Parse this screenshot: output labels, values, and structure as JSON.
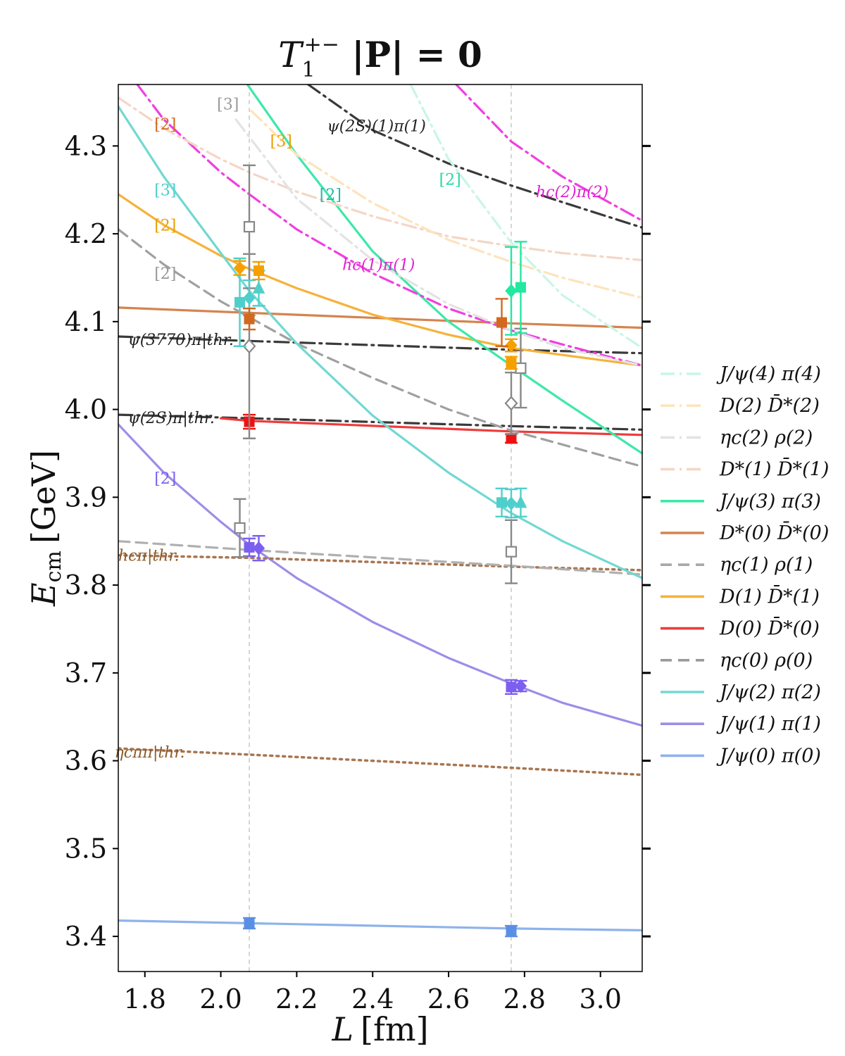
{
  "chart_data": {
    "type": "line",
    "title_main": "T",
    "title_sub": "1",
    "title_sup": "+−",
    "title_rest": " |P| = 0",
    "xlabel_main": "L",
    "xlabel_unit": "[fm]",
    "ylabel_main": "E",
    "ylabel_sub": "cm",
    "ylabel_unit": "[GeV]",
    "xlim": [
      1.73,
      3.11
    ],
    "ylim": [
      3.36,
      4.37
    ],
    "xticks": [
      "1.8",
      "2.0",
      "2.2",
      "2.4",
      "2.6",
      "2.8",
      "3.0"
    ],
    "xtick_values": [
      1.8,
      2.0,
      2.2,
      2.4,
      2.6,
      2.8,
      3.0
    ],
    "yticks": [
      "3.4",
      "3.5",
      "3.6",
      "3.7",
      "3.8",
      "3.9",
      "4.0",
      "4.1",
      "4.2",
      "4.3"
    ],
    "ytick_values": [
      3.4,
      3.5,
      3.6,
      3.7,
      3.8,
      3.9,
      4.0,
      4.1,
      4.2,
      4.3
    ],
    "volumes_L": [
      2.075,
      2.765
    ],
    "legend_position": "right",
    "legend": [
      {
        "label": "J/ψ(4) π(4)",
        "color": "#c9f5e8",
        "dash": "dashdot"
      },
      {
        "label": "D(2) D̄*(2)",
        "color": "#fde3bd",
        "dash": "dashdot"
      },
      {
        "label": "ηc(2) ρ(2)",
        "color": "#e3e3e3",
        "dash": "dashdot"
      },
      {
        "label": "D*(1) D̄*(1)",
        "color": "#f4d6c6",
        "dash": "dashdot"
      },
      {
        "label": "J/ψ(3) π(3)",
        "color": "#3ee8a8",
        "dash": "solid"
      },
      {
        "label": "D*(0) D̄*(0)",
        "color": "#d4844f",
        "dash": "solid"
      },
      {
        "label": "ηc(1) ρ(1)",
        "color": "#a8a8a8",
        "dash": "dashed"
      },
      {
        "label": "D(1) D̄*(1)",
        "color": "#f5b23a",
        "dash": "solid"
      },
      {
        "label": "D(0) D̄*(0)",
        "color": "#ee3b3b",
        "dash": "solid"
      },
      {
        "label": "ηc(0) ρ(0)",
        "color": "#9a9a9a",
        "dash": "dashed"
      },
      {
        "label": "J/ψ(2) π(2)",
        "color": "#72d8d2",
        "dash": "solid"
      },
      {
        "label": "J/ψ(1) π(1)",
        "color": "#9c8ee8",
        "dash": "solid"
      },
      {
        "label": "J/ψ(0) π(0)",
        "color": "#8fb2ea",
        "dash": "solid"
      }
    ],
    "curves": [
      {
        "name": "J/ψ(0) π(0)",
        "color": "#8fb2ea",
        "dash": "solid",
        "points": [
          [
            1.73,
            3.418
          ],
          [
            2.075,
            3.415
          ],
          [
            2.765,
            3.409
          ],
          [
            3.11,
            3.407
          ]
        ]
      },
      {
        "name": "ηcππ thr.",
        "color": "#a87550",
        "dash": "dotted",
        "points": [
          [
            1.73,
            3.614
          ],
          [
            2.075,
            3.607
          ],
          [
            2.765,
            3.592
          ],
          [
            3.11,
            3.584
          ]
        ]
      },
      {
        "name": "J/ψ(1) π(1)",
        "color": "#9c8ee8",
        "dash": "solid",
        "points": [
          [
            1.73,
            3.983
          ],
          [
            1.85,
            3.928
          ],
          [
            2.0,
            3.872
          ],
          [
            2.075,
            3.846
          ],
          [
            2.2,
            3.808
          ],
          [
            2.4,
            3.758
          ],
          [
            2.6,
            3.717
          ],
          [
            2.765,
            3.688
          ],
          [
            2.9,
            3.666
          ],
          [
            3.11,
            3.64
          ]
        ]
      },
      {
        "name": "hcπ thr.",
        "color": "#a87550",
        "dash": "dotted",
        "points": [
          [
            1.73,
            3.834
          ],
          [
            2.075,
            3.831
          ],
          [
            2.765,
            3.821
          ],
          [
            3.11,
            3.817
          ]
        ]
      },
      {
        "name": "ηc(0) ρ(0)",
        "color": "#b0b0b0",
        "dash": "dashed",
        "points": [
          [
            1.73,
            3.85
          ],
          [
            2.075,
            3.84
          ],
          [
            2.765,
            3.822
          ],
          [
            3.11,
            3.812
          ]
        ]
      },
      {
        "name": "ψ(2S)π thr.",
        "color": "#3a3a3a",
        "dash": "dashdot",
        "points": [
          [
            1.73,
            3.994
          ],
          [
            2.075,
            3.99
          ],
          [
            2.765,
            3.981
          ],
          [
            3.11,
            3.977
          ]
        ]
      },
      {
        "name": "D(0) D̄*(0)",
        "color": "#ee3b3b",
        "dash": "solid",
        "points": [
          [
            2.0,
            3.99
          ],
          [
            2.075,
            3.987
          ],
          [
            2.765,
            3.975
          ],
          [
            3.11,
            3.971
          ]
        ]
      },
      {
        "name": "ψ(3770)π thr.",
        "color": "#3a3a3a",
        "dash": "dashdot",
        "points": [
          [
            1.73,
            4.083
          ],
          [
            2.075,
            4.078
          ],
          [
            2.765,
            4.068
          ],
          [
            3.11,
            4.064
          ]
        ]
      },
      {
        "name": "D*(0) D̄*(0)",
        "color": "#d4844f",
        "dash": "solid",
        "points": [
          [
            1.73,
            4.116
          ],
          [
            2.075,
            4.11
          ],
          [
            2.765,
            4.098
          ],
          [
            3.11,
            4.093
          ]
        ]
      },
      {
        "name": "D(1) D̄*(1)",
        "color": "#f5b23a",
        "dash": "solid",
        "points": [
          [
            1.73,
            4.245
          ],
          [
            1.85,
            4.21
          ],
          [
            2.0,
            4.175
          ],
          [
            2.075,
            4.16
          ],
          [
            2.2,
            4.138
          ],
          [
            2.4,
            4.108
          ],
          [
            2.6,
            4.085
          ],
          [
            2.765,
            4.07
          ],
          [
            2.9,
            4.062
          ],
          [
            3.11,
            4.05
          ]
        ]
      },
      {
        "name": "ηc(1) ρ(1)",
        "color": "#a0a0a0",
        "dash": "dashed",
        "points": [
          [
            1.73,
            4.205
          ],
          [
            1.85,
            4.165
          ],
          [
            2.0,
            4.123
          ],
          [
            2.075,
            4.105
          ],
          [
            2.2,
            4.075
          ],
          [
            2.4,
            4.036
          ],
          [
            2.6,
            4.0
          ],
          [
            2.765,
            3.976
          ],
          [
            2.9,
            3.96
          ],
          [
            3.11,
            3.935
          ]
        ]
      },
      {
        "name": "J/ψ(2) π(2)",
        "color": "#72d8d2",
        "dash": "solid",
        "points": [
          [
            1.73,
            4.345
          ],
          [
            1.85,
            4.265
          ],
          [
            2.0,
            4.178
          ],
          [
            2.075,
            4.135
          ],
          [
            2.2,
            4.075
          ],
          [
            2.4,
            3.993
          ],
          [
            2.6,
            3.928
          ],
          [
            2.765,
            3.882
          ],
          [
            2.9,
            3.85
          ],
          [
            3.11,
            3.808
          ]
        ]
      },
      {
        "name": "J/ψ(3) π(3)",
        "color": "#3ee8a8",
        "dash": "solid",
        "points": [
          [
            2.07,
            4.37
          ],
          [
            2.2,
            4.29
          ],
          [
            2.4,
            4.18
          ],
          [
            2.6,
            4.1
          ],
          [
            2.765,
            4.05
          ],
          [
            2.9,
            4.01
          ],
          [
            3.11,
            3.95
          ]
        ]
      },
      {
        "name": "hc(1)π(1)",
        "color": "#f040e0",
        "dash": "dashdot",
        "points": [
          [
            1.78,
            4.37
          ],
          [
            1.85,
            4.33
          ],
          [
            2.0,
            4.27
          ],
          [
            2.075,
            4.245
          ],
          [
            2.2,
            4.205
          ],
          [
            2.4,
            4.155
          ],
          [
            2.6,
            4.115
          ],
          [
            2.765,
            4.09
          ],
          [
            2.9,
            4.074
          ],
          [
            3.11,
            4.05
          ]
        ]
      },
      {
        "name": "D*(1) D̄*(1)",
        "color": "#f4d6c6",
        "dash": "dashdot",
        "points": [
          [
            1.73,
            4.355
          ],
          [
            1.85,
            4.32
          ],
          [
            2.0,
            4.285
          ],
          [
            2.075,
            4.27
          ],
          [
            2.2,
            4.248
          ],
          [
            2.4,
            4.22
          ],
          [
            2.6,
            4.197
          ],
          [
            2.765,
            4.186
          ],
          [
            2.9,
            4.178
          ],
          [
            3.11,
            4.17
          ]
        ]
      },
      {
        "name": "ηc(2) ρ(2)",
        "color": "#e3e3e3",
        "dash": "dashdot",
        "points": [
          [
            2.04,
            4.33
          ],
          [
            2.2,
            4.24
          ],
          [
            2.4,
            4.17
          ],
          [
            2.6,
            4.12
          ],
          [
            2.765,
            4.09
          ],
          [
            2.9,
            4.07
          ],
          [
            3.11,
            4.05
          ]
        ]
      },
      {
        "name": "D(2) D̄*(2)",
        "color": "#fde3bd",
        "dash": "dashdot",
        "points": [
          [
            2.08,
            4.34
          ],
          [
            2.2,
            4.29
          ],
          [
            2.4,
            4.235
          ],
          [
            2.6,
            4.193
          ],
          [
            2.765,
            4.168
          ],
          [
            2.9,
            4.15
          ],
          [
            3.11,
            4.127
          ]
        ]
      },
      {
        "name": "ψ(2S)(1)π(1)",
        "color": "#3a3a3a",
        "dash": "dashdot",
        "points": [
          [
            2.23,
            4.37
          ],
          [
            2.4,
            4.318
          ],
          [
            2.6,
            4.28
          ],
          [
            2.765,
            4.255
          ],
          [
            2.9,
            4.236
          ],
          [
            3.11,
            4.207
          ]
        ]
      },
      {
        "name": "J/ψ(4) π(4)",
        "color": "#c9f5e8",
        "dash": "dashdot",
        "points": [
          [
            2.5,
            4.37
          ],
          [
            2.6,
            4.285
          ],
          [
            2.765,
            4.19
          ],
          [
            2.9,
            4.13
          ],
          [
            3.11,
            4.07
          ]
        ]
      },
      {
        "name": "hc(2)π(2)",
        "color": "#f040e0",
        "dash": "dashdot",
        "points": [
          [
            2.62,
            4.37
          ],
          [
            2.765,
            4.305
          ],
          [
            2.9,
            4.265
          ],
          [
            3.11,
            4.215
          ]
        ]
      }
    ],
    "points": [
      {
        "x": 2.075,
        "y": 3.415,
        "err": 0.006,
        "marker": "square",
        "color": "#5a8fe6",
        "filled": true
      },
      {
        "x": 2.765,
        "y": 3.406,
        "err": 0.006,
        "marker": "square",
        "color": "#5a8fe6",
        "filled": true
      },
      {
        "x": 2.075,
        "y": 3.843,
        "err": 0.01,
        "marker": "square",
        "color": "#7c5ff0",
        "filled": true
      },
      {
        "x": 2.1,
        "y": 3.842,
        "err": 0.014,
        "marker": "diamond",
        "color": "#7c5ff0",
        "filled": true
      },
      {
        "x": 2.765,
        "y": 3.684,
        "err": 0.008,
        "marker": "square",
        "color": "#7c5ff0",
        "filled": true
      },
      {
        "x": 2.79,
        "y": 3.685,
        "err": 0.006,
        "marker": "diamond",
        "color": "#7c5ff0",
        "filled": true
      },
      {
        "x": 2.05,
        "y": 3.865,
        "err": 0.033,
        "marker": "square",
        "color": "#888888",
        "filled": false
      },
      {
        "x": 2.765,
        "y": 3.838,
        "err": 0.036,
        "marker": "square",
        "color": "#888888",
        "filled": false
      },
      {
        "x": 2.075,
        "y": 3.986,
        "err": 0.008,
        "marker": "square",
        "color": "#ee1111",
        "filled": true
      },
      {
        "x": 2.765,
        "y": 3.967,
        "err": 0.005,
        "marker": "square",
        "color": "#ee1111",
        "filled": true
      },
      {
        "x": 2.075,
        "y": 4.072,
        "err": 0.105,
        "marker": "diamond",
        "color": "#888888",
        "filled": false
      },
      {
        "x": 2.075,
        "y": 4.208,
        "err": 0.07,
        "marker": "square",
        "color": "#888888",
        "filled": false
      },
      {
        "x": 2.765,
        "y": 4.007,
        "err": 0.035,
        "marker": "diamond",
        "color": "#888888",
        "filled": false
      },
      {
        "x": 2.79,
        "y": 4.047,
        "err": 0.045,
        "marker": "square",
        "color": "#888888",
        "filled": false
      },
      {
        "x": 2.05,
        "y": 4.122,
        "err": 0.05,
        "marker": "square",
        "color": "#4fcfcb",
        "filled": true
      },
      {
        "x": 2.075,
        "y": 4.127,
        "err": 0.02,
        "marker": "diamond",
        "color": "#4fcfcb",
        "filled": true
      },
      {
        "x": 2.1,
        "y": 4.138,
        "err": 0.02,
        "marker": "triangle",
        "color": "#4fcfcb",
        "filled": true
      },
      {
        "x": 2.74,
        "y": 3.894,
        "err": 0.016,
        "marker": "square",
        "color": "#4fcfcb",
        "filled": true
      },
      {
        "x": 2.765,
        "y": 3.893,
        "err": 0.016,
        "marker": "diamond",
        "color": "#4fcfcb",
        "filled": true
      },
      {
        "x": 2.79,
        "y": 3.894,
        "err": 0.016,
        "marker": "triangle",
        "color": "#4fcfcb",
        "filled": true
      },
      {
        "x": 2.05,
        "y": 4.161,
        "err": 0.008,
        "marker": "diamond",
        "color": "#f5a000",
        "filled": true
      },
      {
        "x": 2.1,
        "y": 4.158,
        "err": 0.01,
        "marker": "square",
        "color": "#f5a000",
        "filled": true
      },
      {
        "x": 2.765,
        "y": 4.073,
        "err": 0.007,
        "marker": "diamond",
        "color": "#f5a000",
        "filled": true
      },
      {
        "x": 2.765,
        "y": 4.053,
        "err": 0.007,
        "marker": "square",
        "color": "#f5a000",
        "filled": true
      },
      {
        "x": 2.075,
        "y": 4.103,
        "err": 0.012,
        "marker": "square",
        "color": "#d2691e",
        "filled": true
      },
      {
        "x": 2.74,
        "y": 4.099,
        "err": 0.027,
        "marker": "square",
        "color": "#d2691e",
        "filled": true
      },
      {
        "x": 2.765,
        "y": 4.135,
        "err": 0.05,
        "marker": "diamond",
        "color": "#22e8a0",
        "filled": true
      },
      {
        "x": 2.79,
        "y": 4.139,
        "err": 0.052,
        "marker": "square",
        "color": "#22e8a0",
        "filled": true
      }
    ],
    "annotations": [
      {
        "text": "ψ(2S)(1)π(1)",
        "x": 2.28,
        "y": 4.323,
        "color": "#222222",
        "anchor": "start"
      },
      {
        "text": "hc(2)π(2)",
        "x": 2.83,
        "y": 4.248,
        "color": "#e020d0",
        "anchor": "start"
      },
      {
        "text": "hc(1)π(1)",
        "x": 2.32,
        "y": 4.165,
        "color": "#e020d0",
        "anchor": "start"
      },
      {
        "text": "ψ(3770)π|thr.",
        "x": 1.755,
        "y": 4.08,
        "color": "#222222",
        "anchor": "start"
      },
      {
        "text": "ψ(2S)π|thr.",
        "x": 1.755,
        "y": 3.991,
        "color": "#222222",
        "anchor": "start"
      },
      {
        "text": "hcπ|thr.",
        "x": 1.73,
        "y": 3.834,
        "color": "#8b5a2b",
        "anchor": "start"
      },
      {
        "text": "ηcππ|thr.",
        "x": 1.72,
        "y": 3.61,
        "color": "#8b5a2b",
        "anchor": "start"
      },
      {
        "text": "[3]",
        "x": 1.99,
        "y": 4.348,
        "color": "#999999",
        "anchor": "start"
      },
      {
        "text": "[2]",
        "x": 1.825,
        "y": 4.325,
        "color": "#d2691e",
        "anchor": "start"
      },
      {
        "text": "[3]",
        "x": 2.13,
        "y": 4.306,
        "color": "#e8a000",
        "anchor": "start"
      },
      {
        "text": "[2]",
        "x": 2.575,
        "y": 4.262,
        "color": "#22d8a0",
        "anchor": "start"
      },
      {
        "text": "[2]",
        "x": 2.26,
        "y": 4.245,
        "color": "#22b8b0",
        "anchor": "start"
      },
      {
        "text": "[3]",
        "x": 1.825,
        "y": 4.25,
        "color": "#4fcfcb",
        "anchor": "start"
      },
      {
        "text": "[2]",
        "x": 1.825,
        "y": 4.21,
        "color": "#e8a000",
        "anchor": "start"
      },
      {
        "text": "[2]",
        "x": 1.825,
        "y": 4.155,
        "color": "#999999",
        "anchor": "start"
      },
      {
        "text": "[2]",
        "x": 1.825,
        "y": 3.922,
        "color": "#7c5ff0",
        "anchor": "start"
      }
    ]
  }
}
